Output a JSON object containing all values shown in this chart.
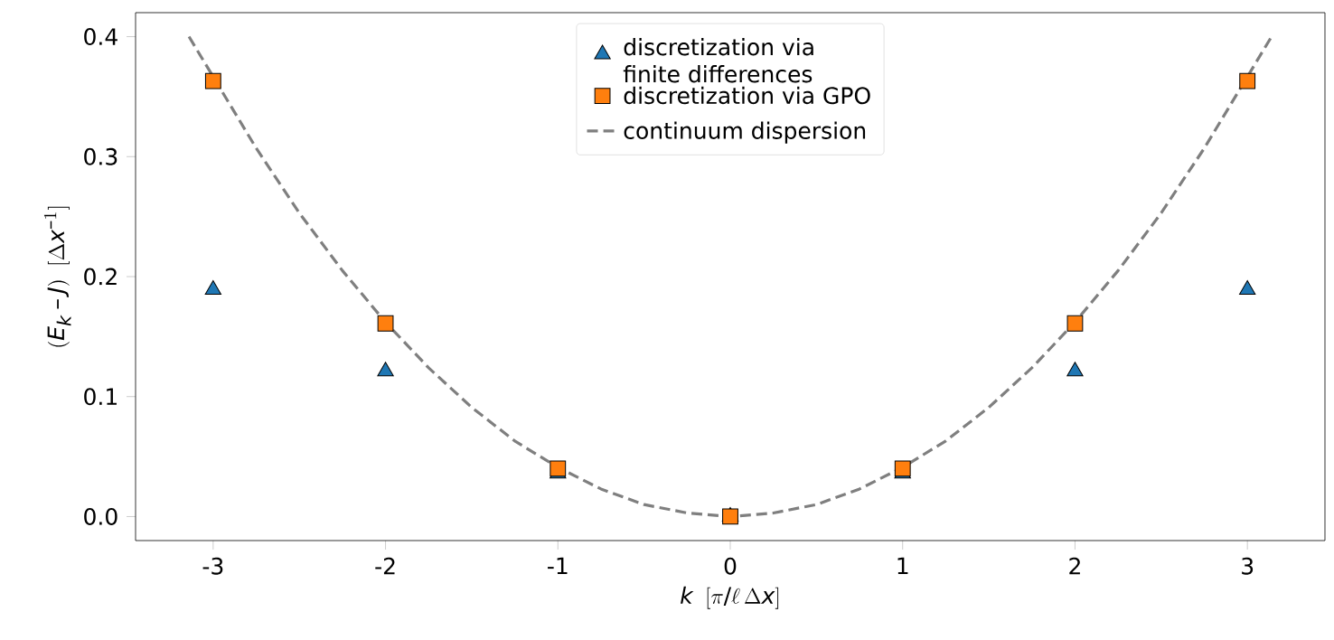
{
  "chart_data": {
    "type": "scatter",
    "xlabel": "k\\;\\;[\\pi/\\ell\\,\\Delta x]",
    "ylabel": "(E_k - J)\\;\\;[\\Delta x^{-1}]",
    "xlim": [
      -3.45,
      3.45
    ],
    "ylim": [
      -0.02,
      0.42
    ],
    "xticks": [
      -3,
      -2,
      -1,
      0,
      1,
      2,
      3
    ],
    "yticks": [
      {
        "value": 0,
        "label": "0.0"
      },
      {
        "value": 0.1,
        "label": "0.1"
      },
      {
        "value": 0.2,
        "label": "0.2"
      },
      {
        "value": 0.3,
        "label": "0.3"
      },
      {
        "value": 0.4,
        "label": "0.4"
      }
    ],
    "legend": "top",
    "series": [
      {
        "name": "discretization via finite differences",
        "type": "scatter",
        "marker": "triangle",
        "color": "#1f77b4",
        "x": [
          -3,
          -2,
          -1,
          0,
          1,
          2,
          3
        ],
        "values": [
          0.189,
          0.121,
          0.036,
          0,
          0.036,
          0.121,
          0.189
        ]
      },
      {
        "name": "discretization via GPO",
        "type": "scatter",
        "marker": "square",
        "color": "#ff7f0e",
        "x": [
          -3,
          -2,
          -1,
          0,
          1,
          2,
          3
        ],
        "values": [
          0.363,
          0.161,
          0.04,
          0,
          0.04,
          0.161,
          0.363
        ]
      },
      {
        "name": "continuum dispersion",
        "type": "line",
        "line_style": "dashed",
        "color": "#7f7f7f",
        "x": [
          -3.14,
          -2.75,
          -2.5,
          -2.25,
          -2,
          -1.75,
          -1.5,
          -1.25,
          -1,
          -0.75,
          -0.5,
          -0.25,
          0,
          0.25,
          0.5,
          0.75,
          1,
          1.25,
          1.5,
          1.75,
          2,
          2.25,
          2.5,
          2.75,
          3.14
        ],
        "values": [
          0.4,
          0.307,
          0.253,
          0.205,
          0.162,
          0.124,
          0.091,
          0.063,
          0.041,
          0.023,
          0.01,
          0.003,
          0,
          0.003,
          0.01,
          0.023,
          0.041,
          0.063,
          0.091,
          0.124,
          0.162,
          0.205,
          0.253,
          0.307,
          0.4
        ]
      }
    ]
  }
}
